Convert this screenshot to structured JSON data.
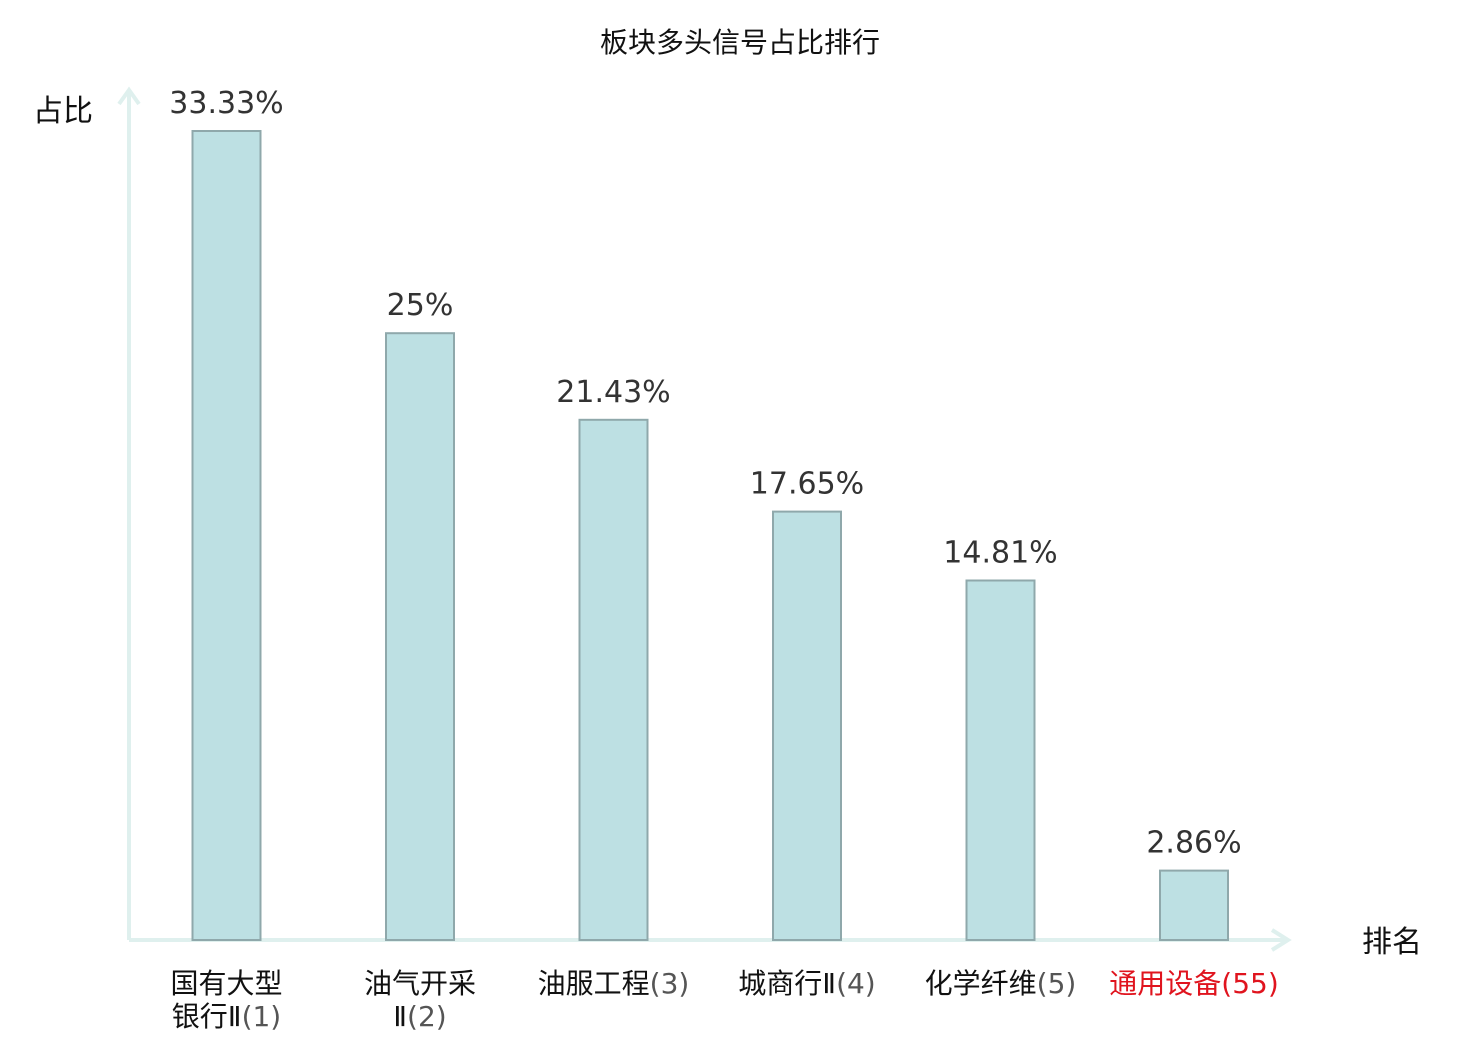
{
  "chart_data": {
    "type": "bar",
    "title": "板块多头信号占比排行",
    "ylabel": "占比",
    "xlabel": "排名",
    "ylim": [
      0,
      35
    ],
    "grid": false,
    "legend": "none",
    "categories": [
      {
        "name_lines": [
          "国有大型",
          "银行Ⅱ"
        ],
        "rank": "(1)",
        "highlight": false
      },
      {
        "name_lines": [
          "油气开采",
          "Ⅱ"
        ],
        "rank": "(2)",
        "highlight": false
      },
      {
        "name_lines": [
          "油服工程"
        ],
        "rank": "(3)",
        "highlight": false
      },
      {
        "name_lines": [
          "城商行Ⅱ"
        ],
        "rank": "(4)",
        "highlight": false
      },
      {
        "name_lines": [
          "化学纤维"
        ],
        "rank": "(5)",
        "highlight": false
      },
      {
        "name_lines": [
          "通用设备"
        ],
        "rank": "(55)",
        "highlight": true
      }
    ],
    "values": [
      33.33,
      25,
      21.43,
      17.65,
      14.81,
      2.86
    ],
    "value_labels": [
      "33.33%",
      "25%",
      "21.43%",
      "17.65%",
      "14.81%",
      "2.86%"
    ],
    "colors": {
      "bar_fill": "#bde0e3",
      "bar_stroke": "#8fa8ab",
      "axis": "#dff0ee",
      "highlight_text": "#e0141e"
    }
  }
}
